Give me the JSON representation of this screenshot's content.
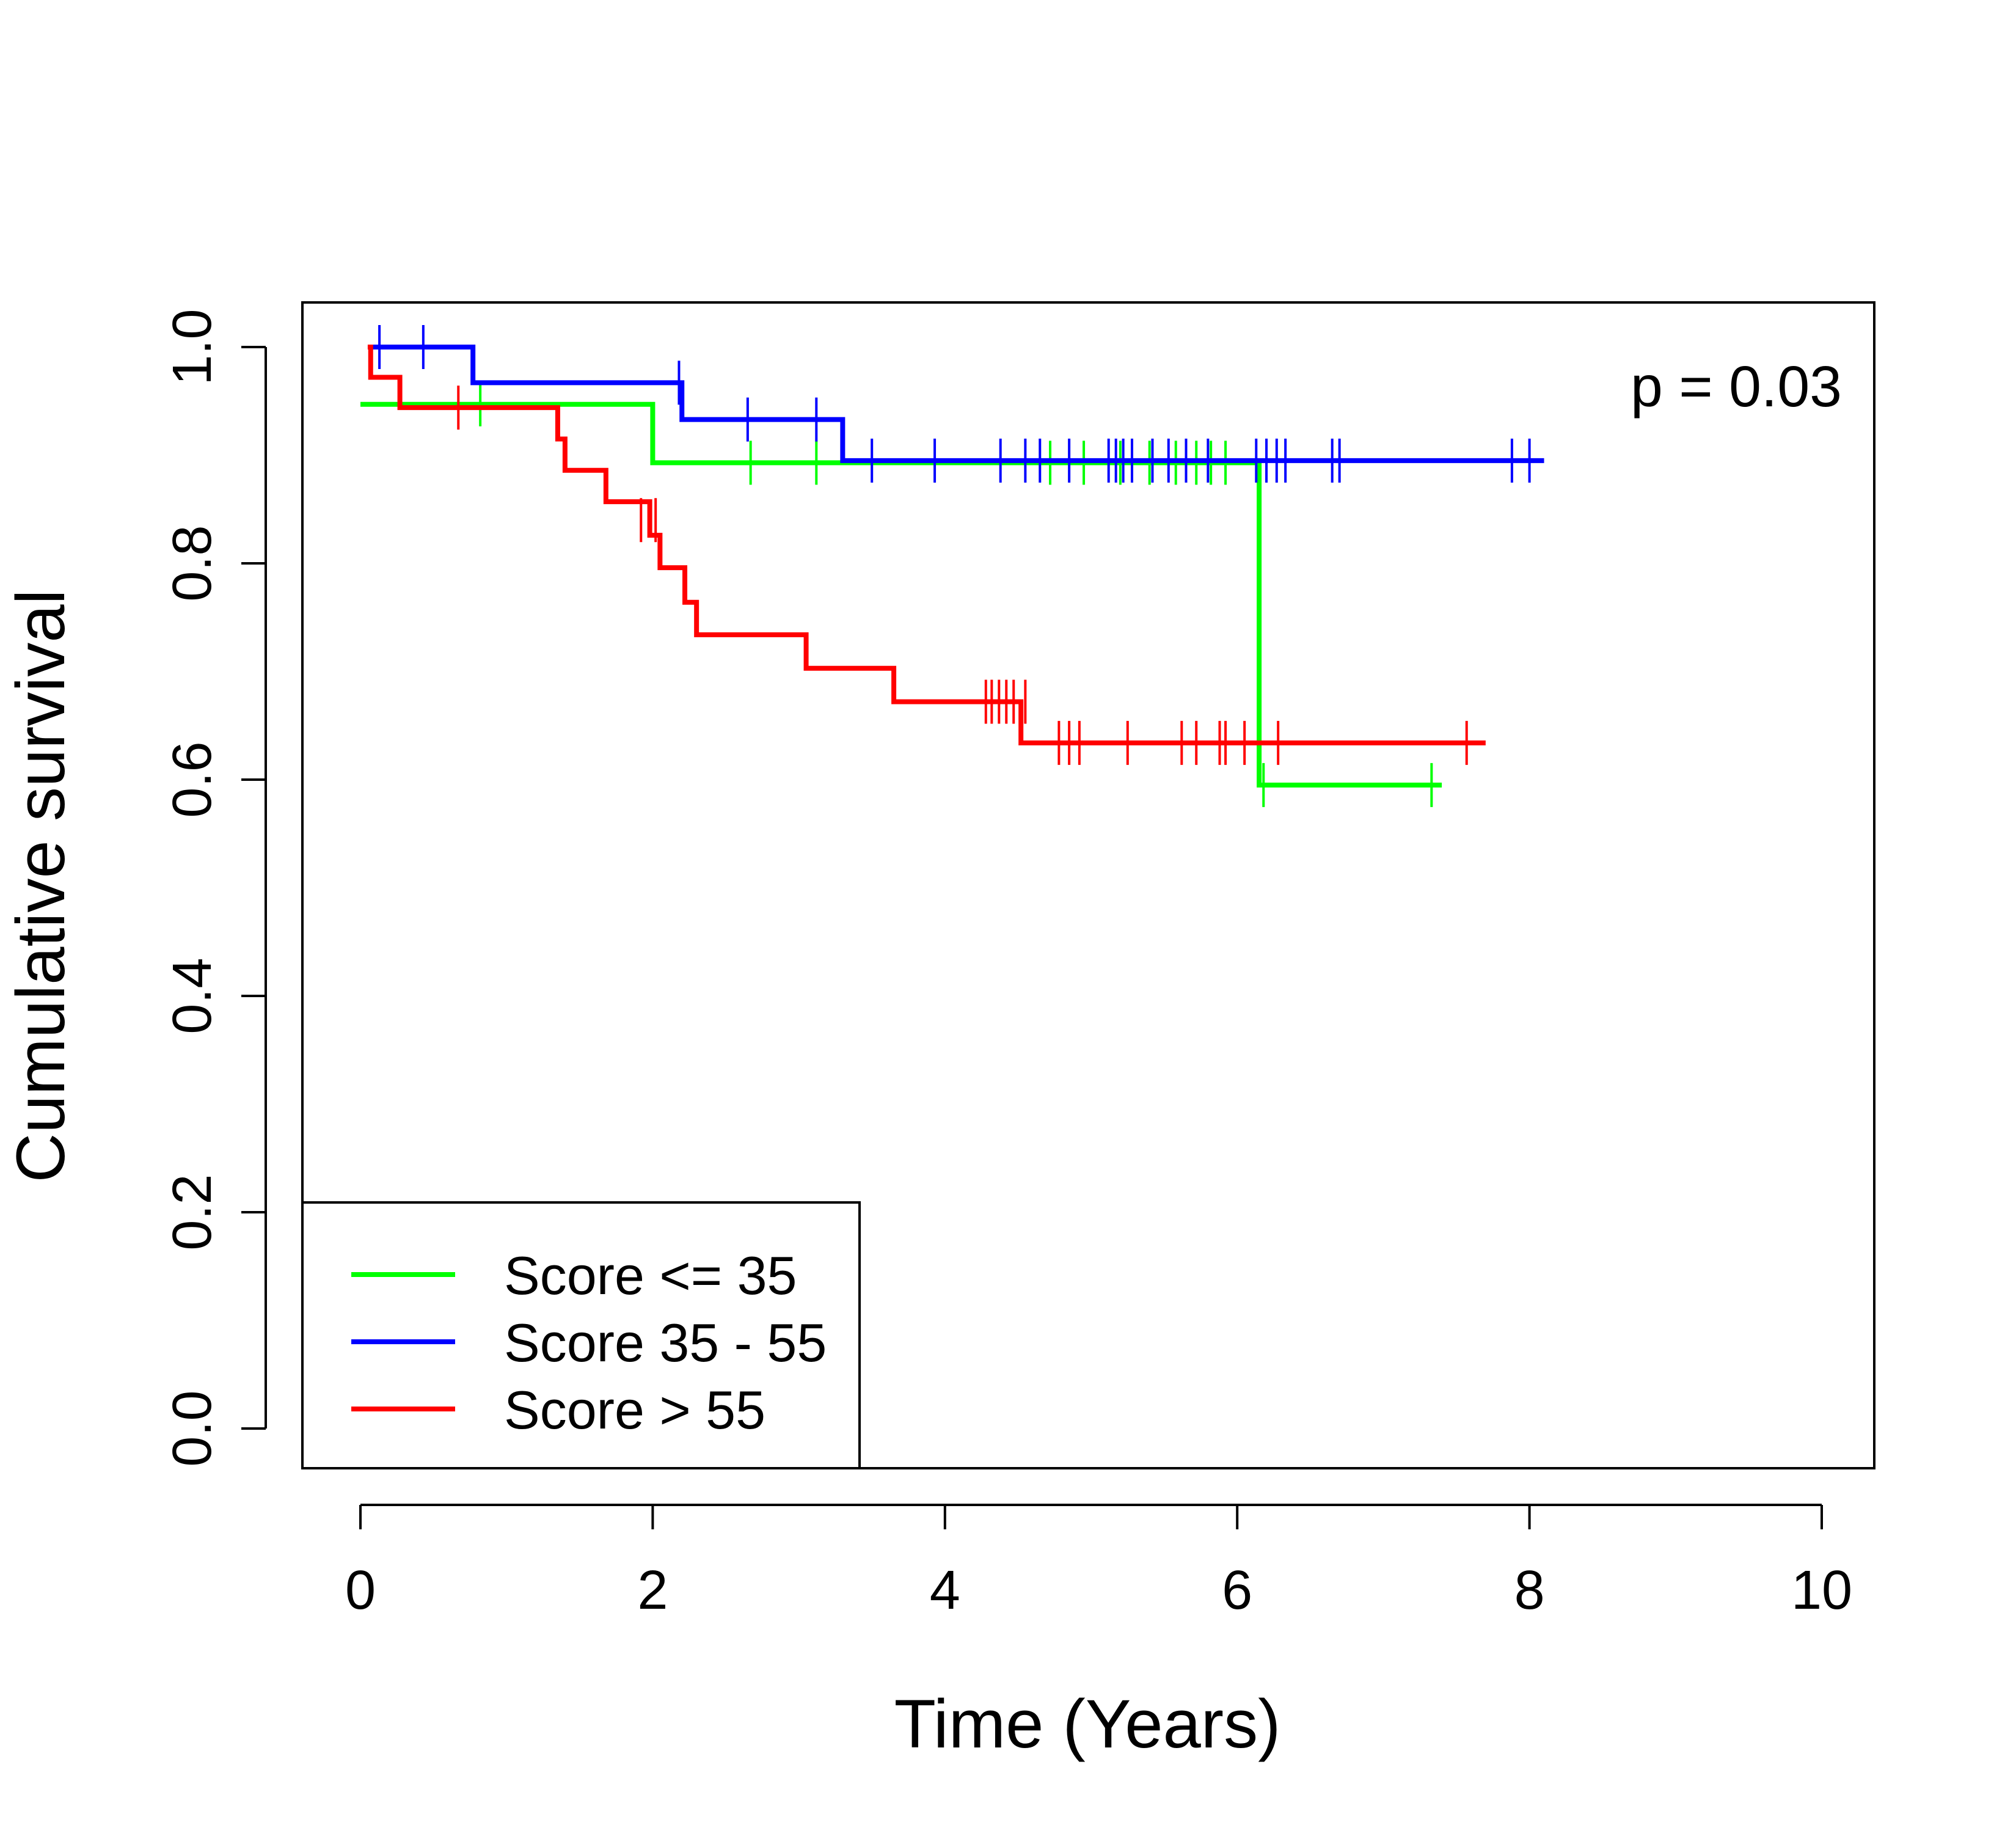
{
  "chart_data": {
    "type": "line",
    "subtype": "kaplan-meier step",
    "title": "",
    "xlabel": "Time (Years)",
    "ylabel": "Cumulative survival",
    "xlim": [
      0,
      10
    ],
    "ylim": [
      0,
      1
    ],
    "xticks": [
      0,
      2,
      4,
      6,
      8,
      10
    ],
    "xtick_labels": [
      "0",
      "2",
      "4",
      "6",
      "8",
      "10"
    ],
    "yticks": [
      0,
      0.2,
      0.4,
      0.6,
      0.8,
      1.0
    ],
    "ytick_labels": [
      "0.0",
      "0.2",
      "0.4",
      "0.6",
      "0.8",
      "1.0"
    ],
    "grid": false,
    "legend_position": "bottom-left",
    "annotation": "p = 0.03",
    "series": [
      {
        "name": "Score <= 35",
        "color": "#00ff00",
        "steps": [
          [
            0,
            0.947
          ],
          [
            2.0,
            0.893
          ],
          [
            6.15,
            0.595
          ],
          [
            7.4,
            0.595
          ]
        ],
        "censor_times": [
          0.82,
          2.67,
          3.12,
          4.72,
          4.95,
          5.2,
          5.4,
          5.58,
          5.72,
          5.82,
          5.92,
          6.18,
          7.33
        ],
        "censor_values": [
          0.947,
          0.893,
          0.893,
          0.893,
          0.893,
          0.893,
          0.893,
          0.893,
          0.893,
          0.893,
          0.893,
          0.595,
          0.595
        ]
      },
      {
        "name": "Score 35 - 55",
        "color": "#0000ff",
        "steps": [
          [
            0.05,
            1.0
          ],
          [
            0.77,
            0.967
          ],
          [
            2.2,
            0.933
          ],
          [
            3.3,
            0.895
          ],
          [
            8.1,
            0.895
          ]
        ],
        "censor_times": [
          0.13,
          0.43,
          2.18,
          2.65,
          3.12,
          3.5,
          3.93,
          4.38,
          4.55,
          4.65,
          4.85,
          5.12,
          5.17,
          5.22,
          5.28,
          5.42,
          5.53,
          5.65,
          5.8,
          6.13,
          6.2,
          6.27,
          6.33,
          6.65,
          6.7,
          7.88,
          8.0
        ],
        "censor_values": [
          1.0,
          1.0,
          0.967,
          0.933,
          0.933,
          0.895,
          0.895,
          0.895,
          0.895,
          0.895,
          0.895,
          0.895,
          0.895,
          0.895,
          0.895,
          0.895,
          0.895,
          0.895,
          0.895,
          0.895,
          0.895,
          0.895,
          0.895,
          0.895,
          0.895,
          0.895,
          0.895
        ]
      },
      {
        "name": "Score > 55",
        "color": "#ff0000",
        "steps": [
          [
            0.05,
            1.0
          ],
          [
            0.07,
            0.972
          ],
          [
            0.27,
            0.944
          ],
          [
            1.35,
            0.915
          ],
          [
            1.4,
            0.886
          ],
          [
            1.68,
            0.857
          ],
          [
            1.98,
            0.826
          ],
          [
            2.05,
            0.796
          ],
          [
            2.22,
            0.764
          ],
          [
            2.3,
            0.734
          ],
          [
            3.05,
            0.703
          ],
          [
            3.65,
            0.672
          ],
          [
            4.52,
            0.634
          ],
          [
            7.7,
            0.634
          ]
        ],
        "censor_times": [
          0.67,
          1.92,
          2.02,
          4.28,
          4.32,
          4.37,
          4.42,
          4.47,
          4.55,
          4.78,
          4.85,
          4.92,
          5.25,
          5.62,
          5.72,
          5.88,
          5.92,
          6.05,
          6.28,
          7.57
        ],
        "censor_values": [
          0.944,
          0.84,
          0.84,
          0.672,
          0.672,
          0.672,
          0.672,
          0.672,
          0.672,
          0.634,
          0.634,
          0.634,
          0.634,
          0.634,
          0.634,
          0.634,
          0.634,
          0.634,
          0.634,
          0.634
        ]
      }
    ]
  }
}
